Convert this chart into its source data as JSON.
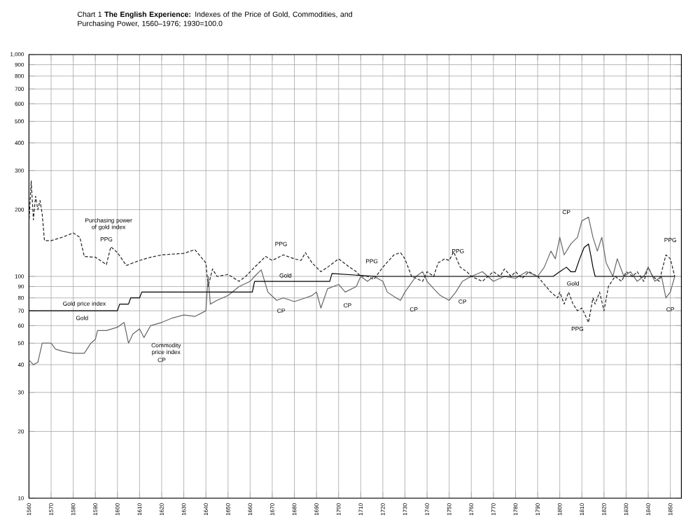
{
  "chart_data": {
    "type": "line",
    "title": "Chart 1 **The English Experience:** Indexes of the Price of Gold, Commodities, and Purchasing Power, 1560–1976; 1930=100.0",
    "log": "y",
    "grid": true,
    "marker": "none",
    "xlim": [
      1560,
      1855
    ],
    "xticks": [
      1560,
      1570,
      1580,
      1590,
      1600,
      1610,
      1620,
      1630,
      1640,
      1650,
      1660,
      1670,
      1680,
      1690,
      1700,
      1710,
      1720,
      1730,
      1740,
      1750,
      1760,
      1770,
      1780,
      1790,
      1800,
      1810,
      1820,
      1830,
      1840,
      1850
    ],
    "ylim": [
      10,
      1000
    ],
    "yticks": [
      10,
      20,
      30,
      40,
      50,
      60,
      70,
      80,
      90,
      100,
      200,
      300,
      400,
      500,
      600,
      700,
      800,
      900,
      {
        "value": 1000,
        "label": "1,000"
      }
    ],
    "series": [
      {
        "color": "#222222",
        "line_style": "dashed",
        "x": [
          1560,
          1561,
          1562,
          1563,
          1564,
          1565,
          1566,
          1567,
          1570,
          1575,
          1580,
          1583,
          1585,
          1590,
          1595,
          1597,
          1600,
          1604,
          1610,
          1615,
          1620,
          1630,
          1635,
          1640,
          1641,
          1643,
          1645,
          1650,
          1655,
          1658,
          1662,
          1667,
          1670,
          1675,
          1680,
          1683,
          1685,
          1688,
          1692,
          1695,
          1700,
          1705,
          1708,
          1710,
          1713,
          1716,
          1720,
          1725,
          1728,
          1730,
          1733,
          1738,
          1740,
          1743,
          1745,
          1748,
          1750,
          1752,
          1755,
          1758,
          1760,
          1765,
          1770,
          1773,
          1775,
          1778,
          1780,
          1783,
          1786,
          1790,
          1793,
          1796,
          1799,
          1800,
          1802,
          1804,
          1806,
          1808,
          1810,
          1813,
          1815,
          1816,
          1818,
          1820,
          1822,
          1825,
          1828,
          1830,
          1833,
          1835,
          1838,
          1840,
          1842,
          1845,
          1848,
          1850,
          1852
        ],
        "values": [
          173,
          270,
          180,
          230,
          200,
          220,
          190,
          145,
          145,
          150,
          157,
          150,
          123,
          122,
          113,
          136,
          128,
          112,
          118,
          122,
          125,
          127,
          132,
          115,
          90,
          108,
          100,
          102,
          95,
          100,
          110,
          123,
          118,
          125,
          120,
          118,
          128,
          115,
          105,
          110,
          120,
          110,
          105,
          100,
          100,
          97,
          110,
          125,
          128,
          120,
          100,
          95,
          105,
          100,
          115,
          120,
          118,
          129,
          110,
          105,
          100,
          95,
          105,
          100,
          108,
          100,
          105,
          98,
          105,
          100,
          92,
          85,
          80,
          85,
          75,
          85,
          75,
          70,
          72,
          62,
          80,
          75,
          85,
          70,
          90,
          100,
          95,
          105,
          100,
          105,
          95,
          110,
          100,
          95,
          125,
          120,
          100
        ]
      },
      {
        "color": "#666666",
        "line_style": "solid",
        "x": [
          1560,
          1562,
          1564,
          1566,
          1570,
          1572,
          1575,
          1580,
          1585,
          1588,
          1590,
          1591,
          1595,
          1600,
          1603,
          1605,
          1607,
          1610,
          1612,
          1615,
          1620,
          1625,
          1630,
          1635,
          1640,
          1641,
          1642,
          1645,
          1650,
          1655,
          1660,
          1662,
          1665,
          1668,
          1672,
          1675,
          1680,
          1685,
          1688,
          1690,
          1692,
          1695,
          1700,
          1703,
          1708,
          1710,
          1713,
          1716,
          1720,
          1722,
          1726,
          1728,
          1730,
          1735,
          1738,
          1740,
          1743,
          1746,
          1750,
          1753,
          1756,
          1760,
          1765,
          1770,
          1775,
          1780,
          1785,
          1790,
          1793,
          1796,
          1798,
          1800,
          1802,
          1805,
          1808,
          1810,
          1813,
          1815,
          1817,
          1819,
          1821,
          1824,
          1826,
          1829,
          1832,
          1835,
          1838,
          1840,
          1843,
          1846,
          1848,
          1850,
          1852
        ],
        "values": [
          42,
          40,
          41,
          50,
          50,
          47,
          46,
          45,
          45,
          50,
          52,
          57,
          57,
          59,
          62,
          50,
          55,
          58,
          53,
          60,
          62,
          65,
          67,
          66,
          70,
          100,
          75,
          78,
          82,
          90,
          95,
          100,
          107,
          85,
          78,
          80,
          77,
          80,
          82,
          85,
          72,
          88,
          92,
          85,
          90,
          100,
          95,
          100,
          95,
          85,
          80,
          78,
          85,
          100,
          105,
          95,
          88,
          82,
          78,
          85,
          95,
          100,
          105,
          95,
          100,
          98,
          105,
          100,
          110,
          130,
          120,
          150,
          125,
          140,
          150,
          178,
          185,
          150,
          130,
          150,
          115,
          100,
          120,
          100,
          105,
          95,
          100,
          110,
          95,
          100,
          80,
          85,
          100
        ]
      },
      {
        "color": "#000000",
        "line_style": "solid",
        "x": [
          1560,
          1600,
          1601,
          1605,
          1606,
          1610,
          1611,
          1661,
          1662,
          1696,
          1697,
          1717,
          1797,
          1800,
          1803,
          1805,
          1807,
          1809,
          1811,
          1813,
          1814,
          1815,
          1816,
          1850,
          1852
        ],
        "values": [
          70,
          70,
          75,
          75,
          80,
          80,
          85,
          85,
          95,
          95,
          103,
          100,
          100,
          105,
          110,
          105,
          105,
          120,
          135,
          140,
          125,
          110,
          100,
          100,
          100
        ]
      }
    ],
    "annotations": [
      "Purchasing power of gold index",
      "PPG",
      "Gold price index",
      "Gold",
      "Commodity price index",
      "CP",
      "PPG",
      "Gold",
      "CP",
      "CP",
      "PPG",
      "CP",
      "PPG",
      "CP",
      "CP",
      "Gold",
      "PPG",
      "PPG",
      "CP"
    ]
  }
}
